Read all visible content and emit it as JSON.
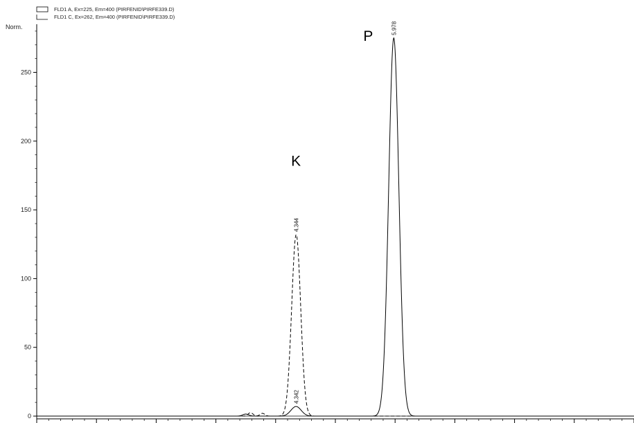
{
  "chart_data": {
    "type": "line",
    "ylabel": "Norm.",
    "xlim": [
      0,
      10
    ],
    "ylim": [
      -2,
      285
    ],
    "y_ticks": [
      0,
      50,
      100,
      150,
      200,
      250
    ],
    "y_tick_labels": [
      "0",
      "50",
      "100",
      "150",
      "200",
      "250"
    ],
    "x_ticks": [
      0,
      1,
      2,
      3,
      4,
      5,
      6,
      7,
      8,
      9
    ],
    "legend": [
      {
        "label": "FLD1 A, Ex=225, Em=400 (PIRFENID\\PIRFE339.D)",
        "style": "solid"
      },
      {
        "label": "FLD1 C, Ex=262, Em=400 (PIRFENID\\PIRFE339.D)",
        "style": "dashed"
      }
    ],
    "series": [
      {
        "name": "FLD1 A, Ex=225, Em=400 (PIRFENID\\PIRFE339.D)",
        "style": "solid",
        "baseline": 0,
        "peaks": [
          {
            "rt": 4.342,
            "height": 7,
            "width": 0.085
          },
          {
            "rt": 5.978,
            "height": 275,
            "width": 0.085
          },
          {
            "rt": 3.5,
            "height": 1.5,
            "width": 0.05
          }
        ]
      },
      {
        "name": "FLD1 C, Ex=262, Em=400 (PIRFENID\\PIRFE339.D)",
        "style": "dashed",
        "baseline": 0,
        "peaks": [
          {
            "rt": 4.344,
            "height": 132,
            "width": 0.075
          },
          {
            "rt": 3.58,
            "height": 2.5,
            "width": 0.04
          },
          {
            "rt": 3.78,
            "height": 2,
            "width": 0.04
          }
        ]
      }
    ],
    "peak_labels": [
      {
        "text": "5.978",
        "x": 5.978,
        "y": 276
      },
      {
        "text": "4.344",
        "x": 4.344,
        "y": 133
      },
      {
        "text": "4.342",
        "x": 4.342,
        "y": 8
      }
    ],
    "annotations": [
      {
        "text": "K",
        "x": 4.34,
        "y": 182
      },
      {
        "text": "P",
        "x": 5.55,
        "y": 273
      }
    ]
  }
}
